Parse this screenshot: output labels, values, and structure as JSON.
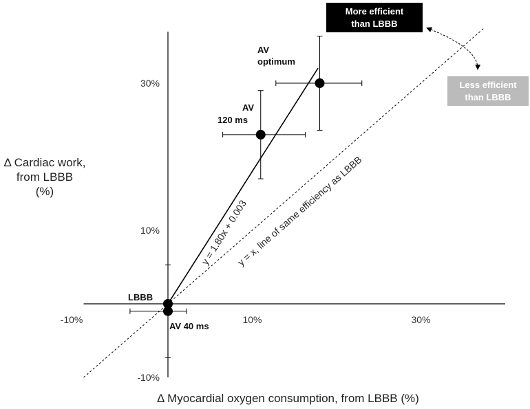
{
  "chart_data": {
    "type": "scatter",
    "title": "",
    "xlabel": "Δ Myocardial oxygen consumption, from LBBB (%)",
    "ylabel_lines": [
      "Δ Cardiac work,",
      "from LBBB",
      "(%)"
    ],
    "xlim": [
      -10,
      40
    ],
    "ylim": [
      -10,
      37
    ],
    "x_ticks": [
      {
        "value": -10,
        "label": "-10%"
      },
      {
        "value": 10,
        "label": "10%"
      },
      {
        "value": 30,
        "label": "30%"
      }
    ],
    "y_ticks": [
      {
        "value": 30,
        "label": "30%"
      },
      {
        "value": 10,
        "label": "10%"
      },
      {
        "value": -10,
        "label": "-10%"
      }
    ],
    "grid": false,
    "points": [
      {
        "label": "LBBB",
        "x": 0,
        "y": 0,
        "xerr": 0,
        "yerr": 0
      },
      {
        "label": "AV 40 ms",
        "x": 0,
        "y": -1,
        "xerr": [
          4.5,
          2.2
        ],
        "yerr": [
          6.3,
          6.3
        ]
      },
      {
        "label_lines": [
          "AV",
          "120 ms"
        ],
        "x": 11,
        "y": 23,
        "xerr": [
          4.5,
          5.3
        ],
        "yerr": [
          6,
          6
        ]
      },
      {
        "label_lines": [
          "AV",
          "optimum"
        ],
        "x": 18,
        "y": 30,
        "xerr": [
          5.2,
          5
        ],
        "yerr": [
          6.4,
          6.4
        ]
      }
    ],
    "fit_line": {
      "slope": 1.8,
      "intercept": 0.003,
      "x_range": [
        0,
        17.8
      ],
      "label": "y = 1.80x + 0.003"
    },
    "identity_line": {
      "x_range": [
        -10,
        37.5
      ],
      "label": "y = x, line of same efficiency as LBBB",
      "style": "dashed"
    },
    "annotations": [
      {
        "lines": [
          "More efficient",
          "than LBBB"
        ],
        "background": "#000000",
        "color": "#ffffff"
      },
      {
        "lines": [
          "Less efficient",
          "than LBBB"
        ],
        "background": "#bbbbbb",
        "color": "#ffffff"
      }
    ]
  }
}
